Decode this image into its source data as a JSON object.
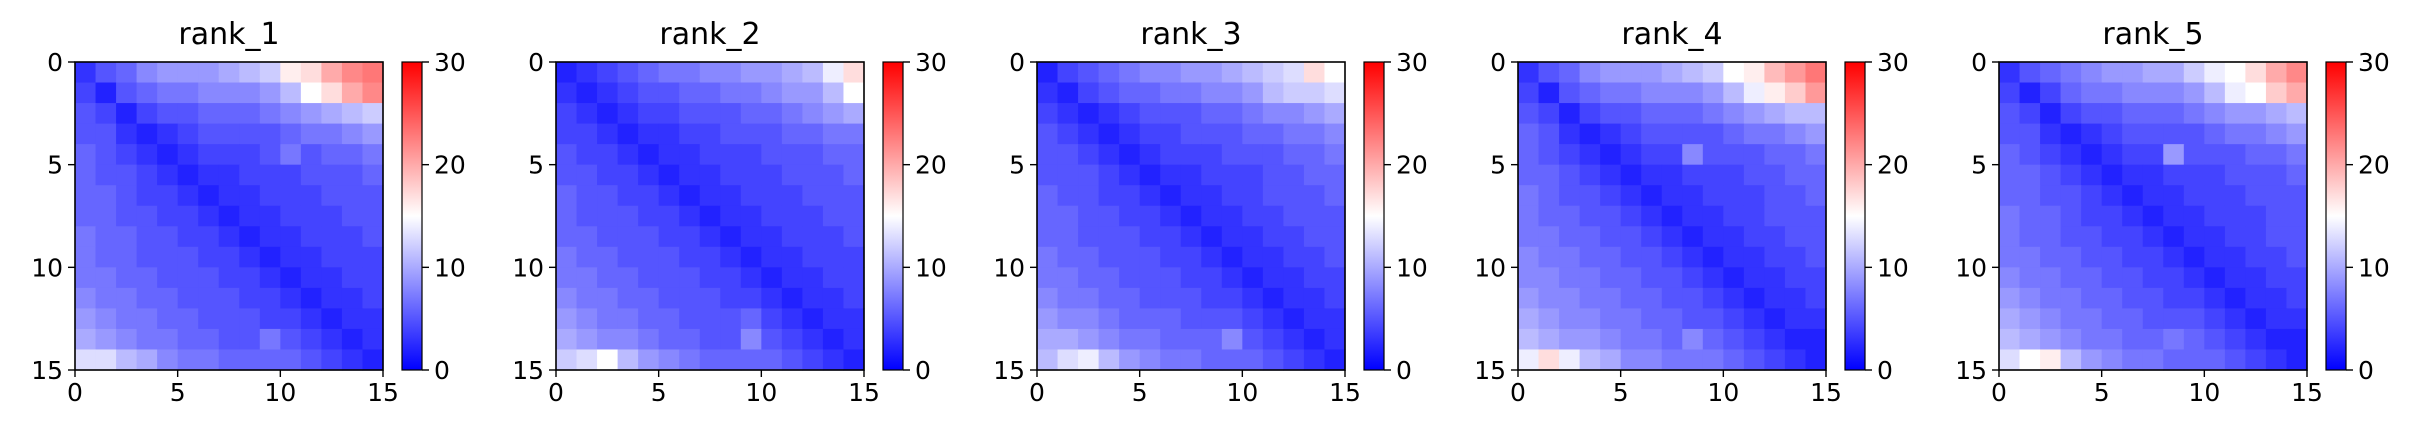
{
  "chart_data": [
    {
      "type": "heatmap",
      "title": "rank_1",
      "xlabel": "",
      "ylabel": "",
      "grid": false,
      "xlim": [
        0,
        15
      ],
      "ylim": [
        15,
        0
      ],
      "xticks": [
        0,
        5,
        10,
        15
      ],
      "yticks": [
        0,
        5,
        10,
        15
      ],
      "colorbar": {
        "min": 0,
        "max": 30,
        "ticks": [
          0,
          10,
          20,
          30
        ],
        "colormap": "bwr",
        "low": "#0000ff",
        "mid": "#ffffff",
        "high": "#ff0000"
      },
      "rows": 15,
      "cols": 15,
      "values": [
        [
          3,
          5,
          6,
          8,
          9,
          9,
          9,
          10,
          11,
          12,
          16,
          17,
          20,
          22,
          23
        ],
        [
          4,
          2,
          5,
          6,
          7,
          7,
          8,
          8,
          8,
          9,
          11,
          15,
          17,
          20,
          22
        ],
        [
          5,
          4,
          2,
          4,
          5,
          5,
          6,
          6,
          6,
          7,
          8,
          9,
          10,
          11,
          12
        ],
        [
          5,
          5,
          3,
          2,
          3,
          4,
          5,
          5,
          5,
          5,
          6,
          7,
          7,
          8,
          9
        ],
        [
          6,
          5,
          4,
          3,
          2,
          3,
          4,
          4,
          4,
          5,
          7,
          5,
          6,
          6,
          7
        ],
        [
          6,
          5,
          5,
          4,
          3,
          2,
          3,
          3,
          4,
          4,
          4,
          5,
          5,
          5,
          6
        ],
        [
          6,
          6,
          5,
          4,
          4,
          3,
          2,
          3,
          3,
          4,
          4,
          4,
          5,
          5,
          5
        ],
        [
          6,
          6,
          5,
          5,
          4,
          4,
          3,
          2,
          3,
          3,
          4,
          4,
          4,
          5,
          5
        ],
        [
          7,
          6,
          6,
          5,
          5,
          4,
          4,
          3,
          2,
          3,
          3,
          4,
          4,
          4,
          5
        ],
        [
          7,
          6,
          6,
          5,
          5,
          5,
          4,
          4,
          3,
          2,
          3,
          3,
          4,
          4,
          4
        ],
        [
          7,
          7,
          6,
          6,
          5,
          5,
          5,
          4,
          4,
          3,
          2,
          3,
          3,
          4,
          4
        ],
        [
          8,
          7,
          7,
          6,
          6,
          5,
          5,
          5,
          4,
          4,
          3,
          2,
          3,
          3,
          4
        ],
        [
          9,
          8,
          7,
          7,
          6,
          6,
          5,
          5,
          5,
          4,
          4,
          3,
          2,
          3,
          3
        ],
        [
          10,
          9,
          8,
          7,
          7,
          6,
          6,
          5,
          5,
          7,
          5,
          4,
          3,
          2,
          3
        ],
        [
          13,
          13,
          11,
          10,
          8,
          7,
          7,
          6,
          6,
          6,
          6,
          5,
          4,
          3,
          2
        ]
      ]
    },
    {
      "type": "heatmap",
      "title": "rank_2",
      "xlabel": "",
      "ylabel": "",
      "grid": false,
      "xlim": [
        0,
        15
      ],
      "ylim": [
        15,
        0
      ],
      "xticks": [
        0,
        5,
        10,
        15
      ],
      "yticks": [
        0,
        5,
        10,
        15
      ],
      "colorbar": {
        "min": 0,
        "max": 30,
        "ticks": [
          0,
          10,
          20,
          30
        ],
        "colormap": "bwr",
        "low": "#0000ff",
        "mid": "#ffffff",
        "high": "#ff0000"
      },
      "rows": 15,
      "cols": 15,
      "values": [
        [
          2,
          3,
          4,
          5,
          6,
          7,
          7,
          8,
          8,
          9,
          9,
          10,
          11,
          14,
          17
        ],
        [
          3,
          2,
          3,
          4,
          5,
          5,
          6,
          6,
          7,
          7,
          8,
          9,
          9,
          11,
          15
        ],
        [
          4,
          3,
          2,
          3,
          4,
          4,
          5,
          5,
          5,
          6,
          6,
          7,
          8,
          9,
          10
        ],
        [
          4,
          4,
          3,
          2,
          3,
          3,
          4,
          4,
          5,
          5,
          5,
          6,
          6,
          7,
          7
        ],
        [
          5,
          4,
          4,
          3,
          2,
          3,
          3,
          4,
          4,
          4,
          5,
          5,
          5,
          6,
          6
        ],
        [
          5,
          5,
          4,
          4,
          3,
          2,
          3,
          3,
          4,
          4,
          4,
          5,
          5,
          5,
          6
        ],
        [
          6,
          5,
          5,
          4,
          4,
          3,
          2,
          3,
          3,
          4,
          4,
          4,
          5,
          5,
          5
        ],
        [
          6,
          5,
          5,
          5,
          4,
          4,
          3,
          2,
          3,
          3,
          4,
          4,
          4,
          5,
          5
        ],
        [
          6,
          6,
          5,
          5,
          5,
          4,
          4,
          3,
          2,
          3,
          3,
          4,
          4,
          4,
          5
        ],
        [
          7,
          6,
          6,
          5,
          5,
          5,
          4,
          4,
          3,
          2,
          3,
          3,
          4,
          4,
          4
        ],
        [
          7,
          7,
          6,
          6,
          5,
          5,
          5,
          4,
          4,
          3,
          2,
          3,
          3,
          4,
          4
        ],
        [
          8,
          7,
          7,
          6,
          6,
          5,
          5,
          5,
          4,
          4,
          3,
          2,
          3,
          3,
          4
        ],
        [
          9,
          8,
          7,
          7,
          6,
          6,
          5,
          5,
          5,
          6,
          4,
          3,
          2,
          3,
          3
        ],
        [
          10,
          9,
          8,
          8,
          7,
          6,
          6,
          5,
          5,
          8,
          5,
          4,
          3,
          2,
          3
        ],
        [
          12,
          13,
          15,
          11,
          9,
          8,
          7,
          6,
          6,
          6,
          6,
          5,
          4,
          3,
          2
        ]
      ]
    },
    {
      "type": "heatmap",
      "title": "rank_3",
      "xlabel": "",
      "ylabel": "",
      "grid": false,
      "xlim": [
        0,
        15
      ],
      "ylim": [
        15,
        0
      ],
      "xticks": [
        0,
        5,
        10,
        15
      ],
      "yticks": [
        0,
        5,
        10,
        15
      ],
      "colorbar": {
        "min": 0,
        "max": 30,
        "ticks": [
          0,
          10,
          20,
          30
        ],
        "colormap": "bwr",
        "low": "#0000ff",
        "mid": "#ffffff",
        "high": "#ff0000"
      },
      "rows": 15,
      "cols": 15,
      "values": [
        [
          2,
          4,
          5,
          6,
          7,
          8,
          8,
          9,
          9,
          10,
          11,
          12,
          13,
          17,
          15
        ],
        [
          3,
          2,
          4,
          5,
          6,
          6,
          7,
          7,
          8,
          8,
          9,
          11,
          12,
          12,
          13
        ],
        [
          4,
          3,
          2,
          3,
          4,
          5,
          5,
          5,
          6,
          6,
          7,
          8,
          8,
          9,
          10
        ],
        [
          5,
          4,
          3,
          2,
          3,
          4,
          4,
          5,
          5,
          5,
          6,
          6,
          7,
          7,
          8
        ],
        [
          5,
          5,
          4,
          3,
          2,
          3,
          4,
          4,
          4,
          5,
          5,
          5,
          6,
          6,
          7
        ],
        [
          5,
          5,
          5,
          4,
          3,
          2,
          3,
          3,
          4,
          4,
          4,
          5,
          5,
          6,
          6
        ],
        [
          6,
          5,
          5,
          4,
          4,
          3,
          2,
          3,
          3,
          4,
          4,
          5,
          5,
          5,
          6
        ],
        [
          6,
          6,
          5,
          5,
          4,
          4,
          3,
          2,
          3,
          3,
          4,
          4,
          5,
          5,
          5
        ],
        [
          6,
          6,
          5,
          5,
          5,
          4,
          4,
          3,
          2,
          3,
          3,
          4,
          4,
          5,
          5
        ],
        [
          7,
          6,
          6,
          5,
          5,
          5,
          4,
          4,
          3,
          2,
          3,
          3,
          4,
          4,
          5
        ],
        [
          7,
          7,
          6,
          6,
          5,
          5,
          5,
          4,
          4,
          3,
          2,
          3,
          3,
          4,
          4
        ],
        [
          8,
          7,
          7,
          6,
          6,
          5,
          5,
          5,
          4,
          4,
          3,
          2,
          3,
          3,
          4
        ],
        [
          9,
          8,
          8,
          7,
          6,
          6,
          6,
          5,
          5,
          5,
          4,
          3,
          2,
          3,
          3
        ],
        [
          10,
          10,
          9,
          8,
          7,
          7,
          6,
          6,
          6,
          8,
          5,
          4,
          3,
          2,
          3
        ],
        [
          11,
          13,
          14,
          11,
          9,
          8,
          7,
          7,
          6,
          6,
          6,
          5,
          4,
          3,
          2
        ]
      ]
    },
    {
      "type": "heatmap",
      "title": "rank_4",
      "xlabel": "",
      "ylabel": "",
      "grid": false,
      "xlim": [
        0,
        15
      ],
      "ylim": [
        15,
        0
      ],
      "xticks": [
        0,
        5,
        10,
        15
      ],
      "yticks": [
        0,
        5,
        10,
        15
      ],
      "colorbar": {
        "min": 0,
        "max": 30,
        "ticks": [
          0,
          10,
          20,
          30
        ],
        "colormap": "bwr",
        "low": "#0000ff",
        "mid": "#ffffff",
        "high": "#ff0000"
      },
      "rows": 15,
      "cols": 15,
      "values": [
        [
          3,
          5,
          6,
          8,
          9,
          9,
          9,
          10,
          11,
          12,
          15,
          16,
          19,
          21,
          23
        ],
        [
          4,
          2,
          5,
          6,
          7,
          7,
          8,
          8,
          8,
          9,
          11,
          14,
          16,
          18,
          21
        ],
        [
          5,
          4,
          2,
          4,
          5,
          5,
          6,
          6,
          6,
          7,
          8,
          9,
          10,
          11,
          11
        ],
        [
          6,
          5,
          3,
          2,
          3,
          4,
          5,
          5,
          5,
          5,
          6,
          7,
          7,
          8,
          9
        ],
        [
          6,
          5,
          4,
          3,
          2,
          3,
          4,
          4,
          8,
          5,
          5,
          5,
          6,
          6,
          7
        ],
        [
          6,
          6,
          5,
          4,
          3,
          2,
          3,
          3,
          4,
          4,
          4,
          5,
          5,
          6,
          6
        ],
        [
          7,
          6,
          5,
          5,
          4,
          3,
          2,
          3,
          3,
          4,
          4,
          4,
          5,
          5,
          6
        ],
        [
          7,
          6,
          6,
          5,
          5,
          4,
          3,
          2,
          3,
          3,
          4,
          4,
          5,
          5,
          5
        ],
        [
          7,
          7,
          6,
          6,
          5,
          5,
          4,
          3,
          2,
          3,
          3,
          4,
          4,
          5,
          5
        ],
        [
          8,
          7,
          7,
          6,
          6,
          5,
          5,
          4,
          3,
          2,
          3,
          3,
          4,
          4,
          5
        ],
        [
          8,
          8,
          7,
          7,
          6,
          6,
          5,
          5,
          4,
          3,
          2,
          3,
          3,
          4,
          4
        ],
        [
          9,
          8,
          8,
          7,
          7,
          6,
          6,
          5,
          5,
          4,
          3,
          2,
          3,
          3,
          4
        ],
        [
          10,
          9,
          8,
          8,
          7,
          7,
          6,
          6,
          5,
          5,
          4,
          3,
          2,
          3,
          3
        ],
        [
          11,
          10,
          9,
          9,
          8,
          7,
          7,
          6,
          8,
          6,
          5,
          4,
          3,
          2,
          2
        ],
        [
          14,
          17,
          14,
          11,
          10,
          8,
          8,
          7,
          7,
          7,
          6,
          5,
          4,
          3,
          2
        ]
      ]
    },
    {
      "type": "heatmap",
      "title": "rank_5",
      "xlabel": "",
      "ylabel": "",
      "grid": false,
      "xlim": [
        0,
        15
      ],
      "ylim": [
        15,
        0
      ],
      "xticks": [
        0,
        5,
        10,
        15
      ],
      "yticks": [
        0,
        5,
        10,
        15
      ],
      "colorbar": {
        "min": 0,
        "max": 30,
        "ticks": [
          0,
          10,
          20,
          30
        ],
        "colormap": "bwr",
        "low": "#0000ff",
        "mid": "#ffffff",
        "high": "#ff0000"
      },
      "rows": 15,
      "cols": 15,
      "values": [
        [
          3,
          5,
          6,
          7,
          8,
          9,
          9,
          10,
          10,
          12,
          14,
          15,
          17,
          20,
          22
        ],
        [
          4,
          2,
          4,
          6,
          7,
          7,
          8,
          8,
          8,
          9,
          11,
          14,
          15,
          18,
          20
        ],
        [
          5,
          4,
          2,
          4,
          5,
          5,
          6,
          6,
          6,
          7,
          8,
          9,
          9,
          10,
          11
        ],
        [
          5,
          5,
          3,
          2,
          3,
          4,
          5,
          5,
          5,
          5,
          6,
          7,
          7,
          8,
          9
        ],
        [
          6,
          5,
          4,
          3,
          2,
          3,
          4,
          4,
          9,
          5,
          5,
          5,
          6,
          6,
          7
        ],
        [
          6,
          6,
          5,
          4,
          3,
          2,
          3,
          3,
          4,
          4,
          4,
          5,
          5,
          5,
          6
        ],
        [
          6,
          6,
          5,
          5,
          4,
          3,
          2,
          3,
          3,
          4,
          4,
          4,
          5,
          5,
          5
        ],
        [
          7,
          6,
          6,
          5,
          4,
          4,
          3,
          2,
          3,
          3,
          4,
          4,
          4,
          5,
          5
        ],
        [
          7,
          6,
          6,
          5,
          5,
          4,
          4,
          3,
          2,
          3,
          3,
          4,
          4,
          5,
          5
        ],
        [
          7,
          7,
          6,
          6,
          5,
          5,
          4,
          4,
          3,
          2,
          3,
          3,
          4,
          4,
          5
        ],
        [
          8,
          7,
          7,
          6,
          6,
          5,
          5,
          4,
          4,
          3,
          2,
          3,
          3,
          4,
          4
        ],
        [
          9,
          8,
          7,
          7,
          6,
          6,
          5,
          5,
          4,
          4,
          3,
          2,
          3,
          3,
          4
        ],
        [
          10,
          9,
          8,
          7,
          7,
          6,
          6,
          5,
          5,
          5,
          4,
          3,
          2,
          3,
          3
        ],
        [
          11,
          10,
          9,
          8,
          7,
          7,
          6,
          6,
          7,
          6,
          5,
          4,
          3,
          2,
          2
        ],
        [
          13,
          15,
          16,
          11,
          9,
          8,
          7,
          7,
          6,
          6,
          6,
          5,
          4,
          3,
          2
        ]
      ]
    }
  ]
}
